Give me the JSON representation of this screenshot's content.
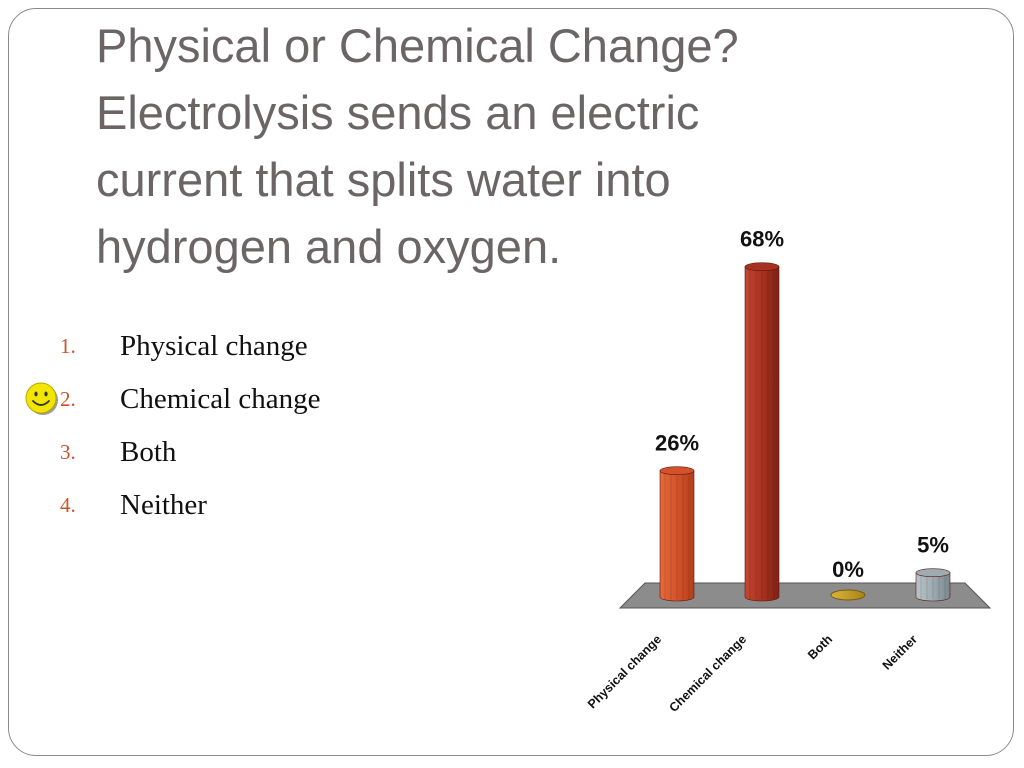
{
  "slide": {
    "title": "Physical or Chemical Change? Electrolysis sends an electric current that splits water into hydrogen and oxygen."
  },
  "options": [
    {
      "number": "1.",
      "label": "Physical change"
    },
    {
      "number": "2.",
      "label": "Chemical change"
    },
    {
      "number": "3.",
      "label": "Both"
    },
    {
      "number": "4.",
      "label": "Neither"
    }
  ],
  "correct_marker": {
    "icon": "smiley-face-icon",
    "option_index": 1,
    "color": "#f2e600"
  },
  "chart_data": {
    "type": "bar",
    "categories": [
      "Physical change",
      "Chemical change",
      "Both",
      "Neither"
    ],
    "values": [
      26,
      68,
      0,
      5
    ],
    "value_labels": [
      "26%",
      "68%",
      "0%",
      "5%"
    ],
    "ylim": [
      0,
      70
    ],
    "colors": [
      "#d4522a",
      "#a8321f",
      "#c9a227",
      "#9eabb0"
    ],
    "floor_color": "#8c8c8c",
    "grid": false,
    "legend": "none",
    "style": "3d-cylinder"
  }
}
